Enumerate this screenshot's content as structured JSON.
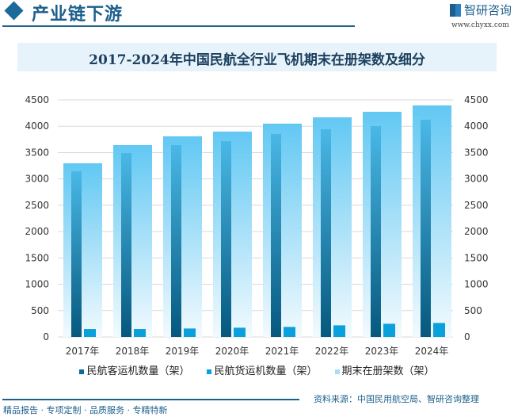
{
  "header": {
    "title": "产业链下游",
    "brand": "智研咨询",
    "url": "www.chyxx.com"
  },
  "chart_data": {
    "type": "bar",
    "title": "2017-2024年中国民航全行业飞机期末在册架数及细分",
    "categories": [
      "2017年",
      "2018年",
      "2019年",
      "2020年",
      "2021年",
      "2022年",
      "2023年",
      "2024年"
    ],
    "series": [
      {
        "name": "民航客运机数量（架）",
        "values": [
          3146,
          3492,
          3642,
          3717,
          3853,
          3943,
          4003,
          4123
        ],
        "color": "#0e6a92"
      },
      {
        "name": "民航货运机数量（架）",
        "values": [
          150,
          150,
          160,
          175,
          190,
          220,
          250,
          265
        ],
        "color": "#0aa0db"
      },
      {
        "name": "期末在册架数（架）",
        "values": [
          3296,
          3642,
          3808,
          3898,
          4049,
          4169,
          4274,
          4395
        ],
        "color": "#6ccbf4"
      }
    ],
    "ylim": [
      0,
      4500
    ],
    "yticks": [
      0,
      500,
      1000,
      1500,
      2000,
      2500,
      3000,
      3500,
      4000,
      4500
    ],
    "grid": true,
    "legend": "bottom",
    "dual_axis": true
  },
  "footer": {
    "source": "资料来源：中国民用航空局、智研咨询整理",
    "slogan": "精品报告 · 专项定制 · 品质服务 · 专精特新"
  }
}
